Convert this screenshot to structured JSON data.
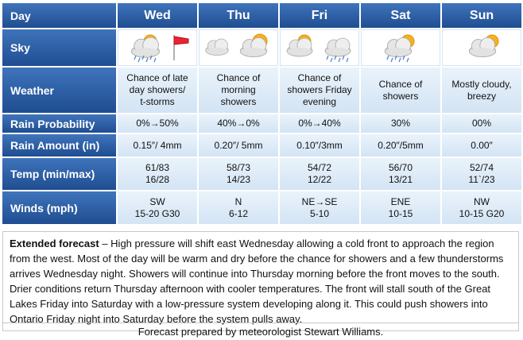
{
  "table": {
    "corner": "Day",
    "days": [
      "Wed",
      "Thu",
      "Fri",
      "Sat",
      "Sun"
    ],
    "rows": [
      {
        "label": "Sky"
      },
      {
        "label": "Weather",
        "cells": [
          [
            "Chance of late",
            "day showers/",
            "t-storms"
          ],
          [
            "Chance of",
            "morning",
            "showers"
          ],
          [
            "Chance of",
            "showers Friday",
            "evening"
          ],
          [
            "Chance of",
            "showers"
          ],
          [
            "Mostly cloudy,",
            "breezy"
          ]
        ]
      },
      {
        "label": "Rain Probability",
        "cells": [
          [
            "0%→50%"
          ],
          [
            "40%→0%"
          ],
          [
            "0%→40%"
          ],
          [
            "30%"
          ],
          [
            "00%"
          ]
        ]
      },
      {
        "label": "Rain Amount (in)",
        "cells": [
          [
            "0.15″/ 4mm"
          ],
          [
            "0.20″/ 5mm"
          ],
          [
            "0.10″/3mm"
          ],
          [
            "0.20″/5mm"
          ],
          [
            "0.00″"
          ]
        ]
      },
      {
        "label": "Temp (min/max)",
        "cells": [
          [
            "61/83",
            "16/28"
          ],
          [
            "58/73",
            "14/23"
          ],
          [
            "54/72",
            "12/22"
          ],
          [
            "56/70",
            "13/21"
          ],
          [
            "52/74",
            "11`/23"
          ]
        ]
      },
      {
        "label": "Winds (mph)",
        "cells": [
          [
            "SW",
            "15-20 G30"
          ],
          [
            "N",
            "6-12"
          ],
          [
            "NE→SE",
            "5-10"
          ],
          [
            "ENE",
            "10-15"
          ],
          [
            "NW",
            "10-15 G20"
          ]
        ]
      }
    ]
  },
  "extended_forecast": {
    "label": "Extended forecast",
    "text": "– High pressure will shift east Wednesday allowing a cold front to approach the region from the west. Most of the day will be warm and dry before the chance for showers and a few thunderstorms arrives Wednesday night. Showers will continue into Thursday morning before the front moves to the south. Drier conditions return Thursday afternoon with cooler temperatures. The front will stall south of the Great Lakes Friday into Saturday with a low-pressure system developing along it. This could push showers into Ontario Friday night into Saturday before the system pulls away."
  },
  "footer": "Forecast prepared by meteorologist Stewart Williams."
}
